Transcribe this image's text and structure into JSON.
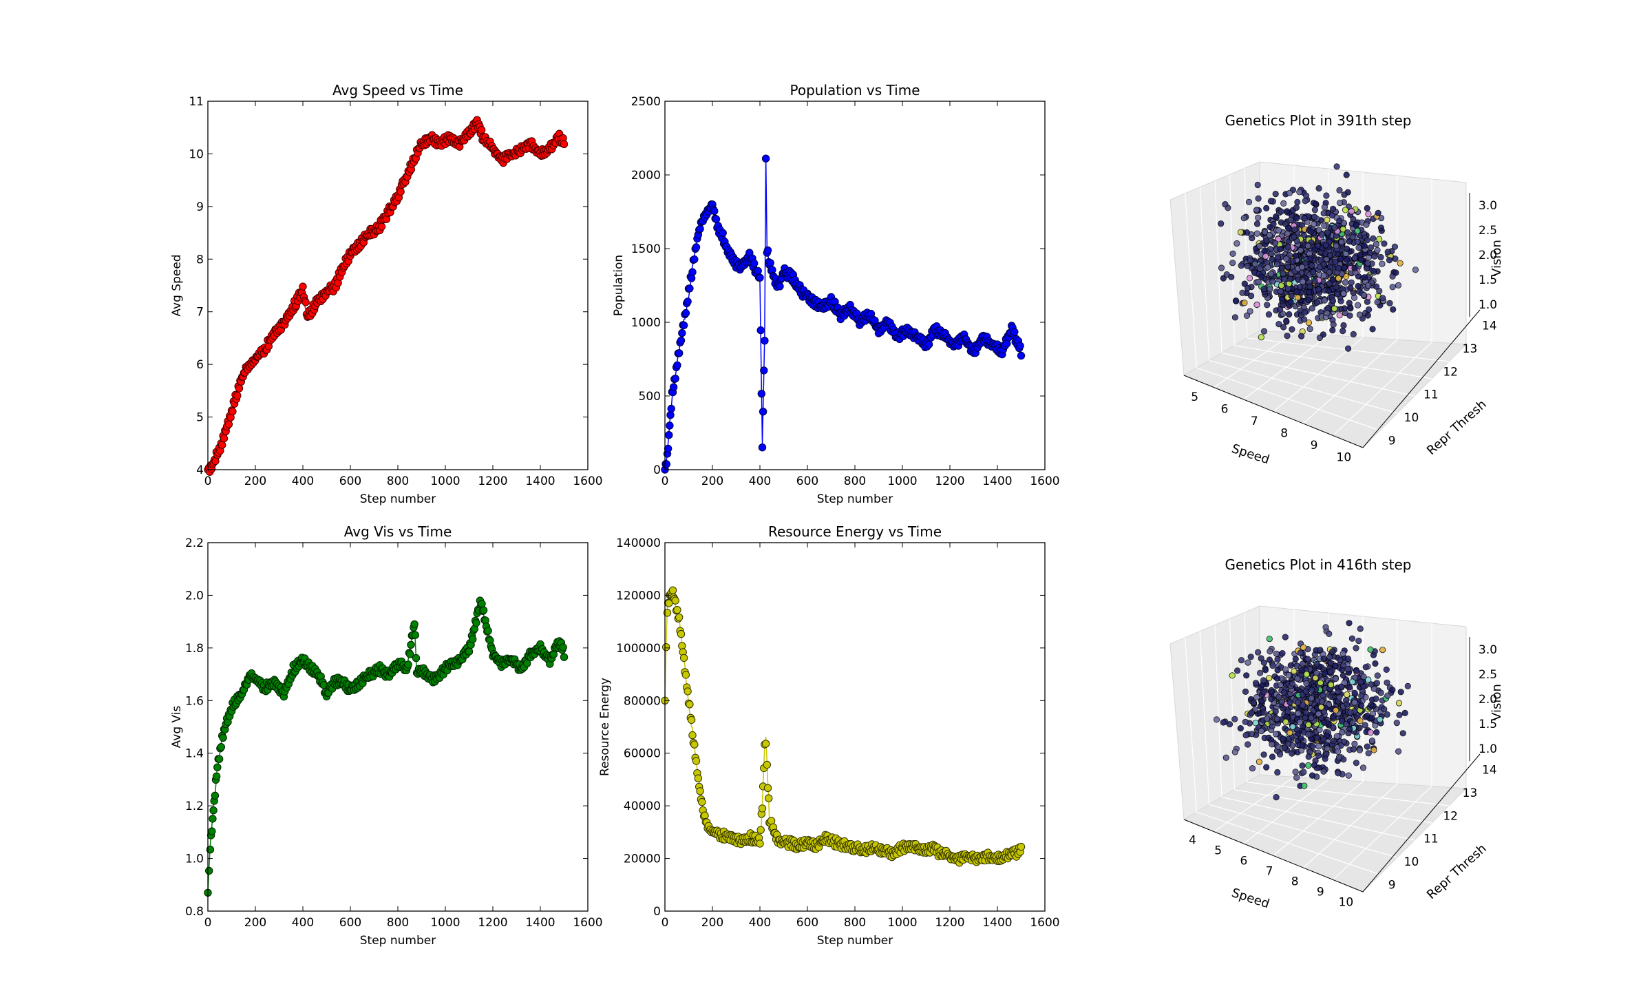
{
  "chart_data": [
    {
      "type": "line",
      "title": "Avg Speed vs Time",
      "xlabel": "Step number",
      "ylabel": "Avg Speed",
      "xlim": [
        0,
        1600
      ],
      "ylim": [
        4,
        11
      ],
      "xticks": [
        "0",
        "200",
        "400",
        "600",
        "800",
        "1000",
        "1200",
        "1400",
        "1600"
      ],
      "yticks": [
        "4",
        "5",
        "6",
        "7",
        "8",
        "9",
        "10",
        "11"
      ],
      "color": "#ff0000",
      "marker": "circle",
      "series": [
        {
          "x": [
            0,
            20,
            40,
            60,
            80,
            100,
            120,
            140,
            160,
            180,
            200,
            240,
            280,
            320,
            360,
            400,
            420,
            460,
            500,
            540,
            560,
            600,
            640,
            680,
            720,
            760,
            800,
            840,
            880,
            900,
            940,
            980,
            1020,
            1060,
            1100,
            1130,
            1160,
            1200,
            1240,
            1280,
            1320,
            1360,
            1400,
            1440,
            1480,
            1500
          ],
          "y": [
            4.0,
            4.1,
            4.3,
            4.5,
            4.8,
            5.1,
            5.4,
            5.7,
            5.9,
            6.0,
            6.1,
            6.3,
            6.6,
            6.8,
            7.1,
            7.4,
            6.9,
            7.2,
            7.4,
            7.5,
            7.8,
            8.1,
            8.3,
            8.5,
            8.6,
            8.9,
            9.2,
            9.6,
            10.0,
            10.2,
            10.3,
            10.2,
            10.3,
            10.2,
            10.4,
            10.6,
            10.3,
            10.1,
            9.9,
            10.0,
            10.1,
            10.2,
            10.0,
            10.1,
            10.3,
            10.2
          ]
        }
      ]
    },
    {
      "type": "line",
      "title": "Population vs Time",
      "xlabel": "Step number",
      "ylabel": "Population",
      "xlim": [
        0,
        1600
      ],
      "ylim": [
        0,
        2500
      ],
      "xticks": [
        "0",
        "200",
        "400",
        "600",
        "800",
        "1000",
        "1200",
        "1400",
        "1600"
      ],
      "yticks": [
        "0",
        "500",
        "1000",
        "1500",
        "2000",
        "2500"
      ],
      "color": "#0000ff",
      "marker": "circle",
      "series": [
        {
          "x": [
            0,
            10,
            20,
            30,
            40,
            60,
            80,
            100,
            120,
            140,
            160,
            180,
            200,
            220,
            240,
            260,
            280,
            300,
            320,
            340,
            360,
            380,
            400,
            410,
            420,
            425,
            430,
            440,
            460,
            480,
            500,
            540,
            580,
            620,
            660,
            700,
            740,
            780,
            820,
            860,
            900,
            940,
            980,
            1020,
            1060,
            1100,
            1140,
            1180,
            1220,
            1260,
            1300,
            1340,
            1380,
            1420,
            1460,
            1500
          ],
          "y": [
            0,
            100,
            300,
            500,
            600,
            800,
            1000,
            1200,
            1400,
            1600,
            1700,
            1750,
            1800,
            1650,
            1600,
            1500,
            1450,
            1400,
            1380,
            1420,
            1450,
            1350,
            1300,
            150,
            900,
            2100,
            1500,
            1400,
            1300,
            1250,
            1350,
            1300,
            1200,
            1150,
            1100,
            1150,
            1050,
            1100,
            1000,
            1050,
            950,
            1000,
            900,
            950,
            900,
            850,
            950,
            900,
            850,
            900,
            800,
            900,
            850,
            800,
            950,
            800
          ]
        }
      ]
    },
    {
      "type": "line",
      "title": "Avg Vis vs Time",
      "xlabel": "Step number",
      "ylabel": "Avg Vis",
      "xlim": [
        0,
        1600
      ],
      "ylim": [
        0.8,
        2.2
      ],
      "xticks": [
        "0",
        "200",
        "400",
        "600",
        "800",
        "1000",
        "1200",
        "1400",
        "1600"
      ],
      "yticks": [
        "0.8",
        "1.0",
        "1.2",
        "1.4",
        "1.6",
        "1.8",
        "2.0",
        "2.2"
      ],
      "color": "#008000",
      "marker": "circle",
      "series": [
        {
          "x": [
            0,
            5,
            10,
            20,
            30,
            40,
            60,
            80,
            100,
            120,
            140,
            160,
            180,
            200,
            240,
            280,
            320,
            360,
            400,
            440,
            480,
            500,
            520,
            560,
            600,
            640,
            680,
            720,
            760,
            800,
            840,
            870,
            880,
            900,
            940,
            980,
            1020,
            1060,
            1100,
            1130,
            1150,
            1180,
            1200,
            1240,
            1280,
            1320,
            1360,
            1400,
            1440,
            1480,
            1500
          ],
          "y": [
            0.87,
            0.95,
            1.05,
            1.15,
            1.25,
            1.35,
            1.45,
            1.52,
            1.57,
            1.6,
            1.62,
            1.66,
            1.7,
            1.68,
            1.65,
            1.67,
            1.63,
            1.72,
            1.75,
            1.72,
            1.68,
            1.62,
            1.66,
            1.68,
            1.64,
            1.67,
            1.7,
            1.72,
            1.7,
            1.74,
            1.72,
            1.9,
            1.7,
            1.72,
            1.68,
            1.7,
            1.74,
            1.75,
            1.8,
            1.9,
            1.98,
            1.85,
            1.78,
            1.74,
            1.76,
            1.72,
            1.78,
            1.8,
            1.75,
            1.82,
            1.78
          ]
        }
      ]
    },
    {
      "type": "line",
      "title": "Resource Energy vs Time",
      "xlabel": "Step number",
      "ylabel": "Resource Energy",
      "xlim": [
        0,
        1600
      ],
      "ylim": [
        0,
        140000
      ],
      "xticks": [
        "0",
        "200",
        "400",
        "600",
        "800",
        "1000",
        "1200",
        "1400",
        "1600"
      ],
      "yticks": [
        "0",
        "20000",
        "40000",
        "60000",
        "80000",
        "100000",
        "120000",
        "140000"
      ],
      "color": "#c8c800",
      "marker": "circle",
      "series": [
        {
          "x": [
            0,
            5,
            10,
            20,
            30,
            40,
            60,
            80,
            100,
            120,
            140,
            160,
            180,
            200,
            240,
            280,
            320,
            360,
            400,
            410,
            420,
            425,
            430,
            440,
            460,
            480,
            520,
            560,
            600,
            640,
            680,
            720,
            760,
            800,
            840,
            880,
            920,
            960,
            1000,
            1040,
            1080,
            1120,
            1160,
            1200,
            1240,
            1280,
            1320,
            1360,
            1400,
            1440,
            1480,
            1500
          ],
          "y": [
            80000,
            100000,
            115000,
            120000,
            121000,
            119000,
            110000,
            95000,
            80000,
            65000,
            50000,
            38000,
            32000,
            30000,
            29000,
            28000,
            27000,
            28000,
            26000,
            40000,
            62000,
            65000,
            55000,
            35000,
            30000,
            27000,
            26000,
            25000,
            26000,
            25000,
            28000,
            26000,
            25000,
            24000,
            23000,
            24000,
            23000,
            22000,
            24000,
            25000,
            23000,
            24000,
            22000,
            21000,
            20000,
            21000,
            20000,
            21000,
            20000,
            21000,
            22000,
            23000
          ]
        }
      ]
    },
    {
      "type": "scatter",
      "title": "Genetics Plot in 391th step",
      "xlabel": "Speed",
      "ylabel": "Repr Thresh",
      "zlabel": "Vision",
      "xticks": [
        "5",
        "6",
        "7",
        "8",
        "9",
        "10"
      ],
      "yticks": [
        "9",
        "10",
        "11",
        "12",
        "13",
        "14"
      ],
      "zticks": [
        "1.0",
        "1.5",
        "2.0",
        "2.5",
        "3.0"
      ],
      "xlim": [
        4.5,
        10.5
      ],
      "ylim": [
        9,
        14
      ],
      "zlim": [
        0.7,
        3.4
      ]
    },
    {
      "type": "scatter",
      "title": "Genetics Plot in 416th step",
      "xlabel": "Speed",
      "ylabel": "Repr Thresh",
      "zlabel": "Vision",
      "xticks": [
        "4",
        "5",
        "6",
        "7",
        "8",
        "9",
        "10"
      ],
      "yticks": [
        "9",
        "10",
        "11",
        "12",
        "13",
        "14"
      ],
      "zticks": [
        "1.0",
        "1.5",
        "2.0",
        "2.5",
        "3.0"
      ],
      "xlim": [
        3.5,
        10.5
      ],
      "ylim": [
        9,
        14
      ],
      "zlim": [
        0.7,
        3.4
      ]
    }
  ]
}
